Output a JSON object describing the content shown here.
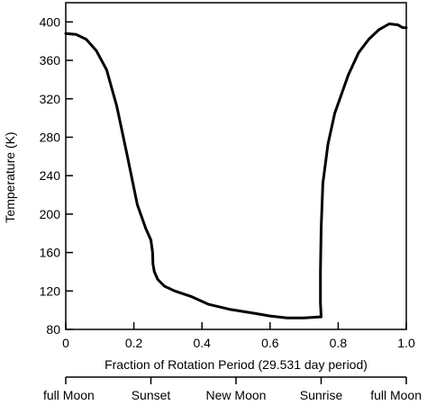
{
  "chart_data": {
    "type": "line",
    "title": "",
    "xlabel": "Fraction of Rotation Period (29.531 day period)",
    "ylabel": "Temperature (K)",
    "xlim": [
      0,
      1.0
    ],
    "ylim": [
      80,
      420
    ],
    "x_ticks": [
      0,
      0.2,
      0.4,
      0.6,
      0.8,
      1.0
    ],
    "x_tick_labels": [
      "0",
      "0.2",
      "0.4",
      "0.6",
      "0.8",
      "1.0"
    ],
    "y_ticks": [
      80,
      120,
      160,
      200,
      240,
      280,
      320,
      360,
      400
    ],
    "y_tick_labels": [
      "80",
      "120",
      "160",
      "200",
      "240",
      "280",
      "320",
      "360",
      "400"
    ],
    "grid": false,
    "series": [
      {
        "points": [
          [
            0.0,
            388
          ],
          [
            0.03,
            387
          ],
          [
            0.06,
            382
          ],
          [
            0.09,
            370
          ],
          [
            0.12,
            350
          ],
          [
            0.15,
            312
          ],
          [
            0.18,
            262
          ],
          [
            0.21,
            210
          ],
          [
            0.235,
            185
          ],
          [
            0.25,
            173
          ],
          [
            0.255,
            160
          ],
          [
            0.256,
            148
          ],
          [
            0.26,
            140
          ],
          [
            0.27,
            132
          ],
          [
            0.29,
            125
          ],
          [
            0.32,
            120
          ],
          [
            0.37,
            114
          ],
          [
            0.42,
            106
          ],
          [
            0.48,
            101
          ],
          [
            0.55,
            97
          ],
          [
            0.6,
            94
          ],
          [
            0.65,
            92
          ],
          [
            0.7,
            92
          ],
          [
            0.745,
            93
          ],
          [
            0.75,
            93
          ],
          [
            0.748,
            108
          ],
          [
            0.748,
            140
          ],
          [
            0.75,
            185
          ],
          [
            0.755,
            232
          ],
          [
            0.77,
            273
          ],
          [
            0.79,
            305
          ],
          [
            0.81,
            325
          ],
          [
            0.83,
            345
          ],
          [
            0.86,
            368
          ],
          [
            0.89,
            382
          ],
          [
            0.92,
            392
          ],
          [
            0.95,
            398
          ],
          [
            0.975,
            397
          ],
          [
            0.99,
            394
          ],
          [
            1.0,
            394
          ]
        ]
      }
    ],
    "phase_labels": [
      {
        "x": 0.0,
        "label": "full Moon"
      },
      {
        "x": 0.25,
        "label": "Sunset"
      },
      {
        "x": 0.5,
        "label": "New Moon"
      },
      {
        "x": 0.75,
        "label": "Sunrise"
      },
      {
        "x": 1.0,
        "label": "full Moon"
      }
    ]
  }
}
